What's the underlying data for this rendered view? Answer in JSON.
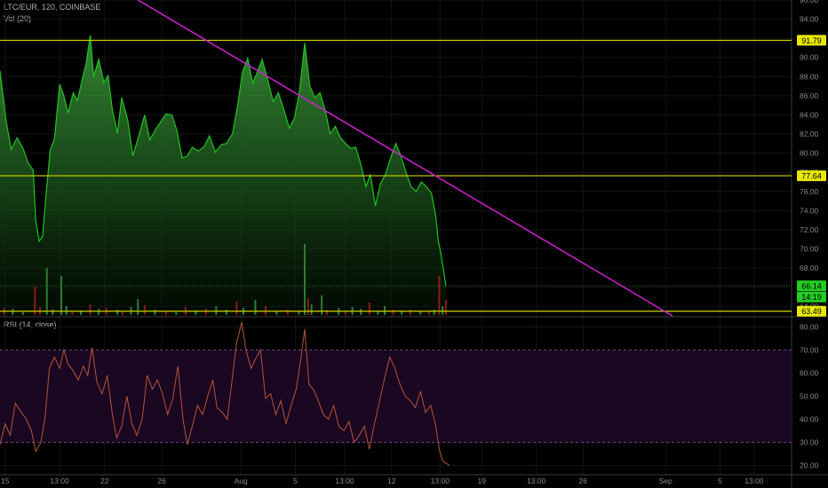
{
  "header": {
    "symbol": "LTC/EUR, 120, COINBASE",
    "volume_label": "Vol (20)",
    "rsi_label": "RSI (14, close)"
  },
  "colors": {
    "price_line": "#1ec41e",
    "volume_up": "#2e7d32",
    "volume_down": "#8b1a1a",
    "hline": "#d4d400",
    "trendline": "#d020d0",
    "rsi_line": "#b5543a",
    "rsi_band": "#1a0722",
    "label_green": "#22cc22",
    "label_yellow": "#e8e800"
  },
  "chart_data": [
    {
      "type": "area",
      "panel": "price",
      "ylim": [
        63,
        96
      ],
      "yticks": [
        64,
        66,
        68,
        70,
        72,
        74,
        76,
        78,
        80,
        82,
        84,
        86,
        88,
        90,
        92,
        94,
        96
      ],
      "ytick_labels": [
        "64.00",
        "66.00",
        "68.00",
        "70.00",
        "72.00",
        "74.00",
        "76.00",
        "78.00",
        "80.00",
        "82.00",
        "84.00",
        "86.00",
        "88.00",
        "90.00",
        "92.00",
        "94.00",
        "96.00"
      ],
      "x_labels": [
        {
          "t": 0.6,
          "label": "15"
        },
        {
          "t": 7.0,
          "label": "13:00"
        },
        {
          "t": 12.3,
          "label": "22"
        },
        {
          "t": 19.0,
          "label": "26"
        },
        {
          "t": 28.3,
          "label": "Aug"
        },
        {
          "t": 34.7,
          "label": "5"
        },
        {
          "t": 40.5,
          "label": "13:00"
        },
        {
          "t": 46.0,
          "label": "12"
        },
        {
          "t": 51.7,
          "label": "13:00"
        },
        {
          "t": 56.6,
          "label": "19"
        },
        {
          "t": 63.0,
          "label": "13:00"
        },
        {
          "t": 68.5,
          "label": "26"
        },
        {
          "t": 78.2,
          "label": "Sep"
        },
        {
          "t": 84.6,
          "label": "5"
        },
        {
          "t": 88.6,
          "label": "13:00"
        }
      ],
      "x_range": [
        0,
        93
      ],
      "price": [
        [
          0,
          88.6
        ],
        [
          0.7,
          83.5
        ],
        [
          1.3,
          80.4
        ],
        [
          2.0,
          81.6
        ],
        [
          2.7,
          80.5
        ],
        [
          3.3,
          79.0
        ],
        [
          3.9,
          78.2
        ],
        [
          4.2,
          73.0
        ],
        [
          4.6,
          70.8
        ],
        [
          5.0,
          71.3
        ],
        [
          5.4,
          75.5
        ],
        [
          5.9,
          80.3
        ],
        [
          6.4,
          81.5
        ],
        [
          7.0,
          87.2
        ],
        [
          7.5,
          86.0
        ],
        [
          8.0,
          84.2
        ],
        [
          8.6,
          86.3
        ],
        [
          9.1,
          85.5
        ],
        [
          9.6,
          87.5
        ],
        [
          10.1,
          89.3
        ],
        [
          10.6,
          92.3
        ],
        [
          11.0,
          88.0
        ],
        [
          11.6,
          89.8
        ],
        [
          12.2,
          87.4
        ],
        [
          12.7,
          88.1
        ],
        [
          13.2,
          84.5
        ],
        [
          13.8,
          82.1
        ],
        [
          14.3,
          85.8
        ],
        [
          15.0,
          83.5
        ],
        [
          15.6,
          79.7
        ],
        [
          16.3,
          81.8
        ],
        [
          17.0,
          84.0
        ],
        [
          17.6,
          81.4
        ],
        [
          18.3,
          82.5
        ],
        [
          18.9,
          83.3
        ],
        [
          19.5,
          84.1
        ],
        [
          20.2,
          84.0
        ],
        [
          20.8,
          82.3
        ],
        [
          21.4,
          79.5
        ],
        [
          22.0,
          79.7
        ],
        [
          22.6,
          80.6
        ],
        [
          23.3,
          80.2
        ],
        [
          24.0,
          80.7
        ],
        [
          24.6,
          81.8
        ],
        [
          25.3,
          80.1
        ],
        [
          26.0,
          80.9
        ],
        [
          26.6,
          81.0
        ],
        [
          27.3,
          82.0
        ],
        [
          27.9,
          84.9
        ],
        [
          28.5,
          88.5
        ],
        [
          29.1,
          89.9
        ],
        [
          29.7,
          87.3
        ],
        [
          30.2,
          88.4
        ],
        [
          30.8,
          89.8
        ],
        [
          31.5,
          87.5
        ],
        [
          32.1,
          85.4
        ],
        [
          32.7,
          86.3
        ],
        [
          33.4,
          84.4
        ],
        [
          34.0,
          82.6
        ],
        [
          34.6,
          83.7
        ],
        [
          35.2,
          86.5
        ],
        [
          35.8,
          91.5
        ],
        [
          36.4,
          87.0
        ],
        [
          37.0,
          85.8
        ],
        [
          37.6,
          86.3
        ],
        [
          38.2,
          84.5
        ],
        [
          38.8,
          82.0
        ],
        [
          39.4,
          82.8
        ],
        [
          40.0,
          81.6
        ],
        [
          40.6,
          81.0
        ],
        [
          41.2,
          80.5
        ],
        [
          41.8,
          80.6
        ],
        [
          42.4,
          78.8
        ],
        [
          43.0,
          76.5
        ],
        [
          43.5,
          77.8
        ],
        [
          44.1,
          74.5
        ],
        [
          44.7,
          76.8
        ],
        [
          45.3,
          77.8
        ],
        [
          45.9,
          79.5
        ],
        [
          46.5,
          81.0
        ],
        [
          47.1,
          79.7
        ],
        [
          47.7,
          78.0
        ],
        [
          48.3,
          76.5
        ],
        [
          48.9,
          76.0
        ],
        [
          49.5,
          77.0
        ],
        [
          50.1,
          76.5
        ],
        [
          50.7,
          75.8
        ],
        [
          51.2,
          73.4
        ],
        [
          51.5,
          70.8
        ],
        [
          51.8,
          69.5
        ],
        [
          52.1,
          67.8
        ],
        [
          52.4,
          66.1
        ]
      ],
      "volume": [
        [
          0.5,
          4.0,
          "d"
        ],
        [
          1.5,
          3.5,
          "u"
        ],
        [
          2.7,
          1.5,
          "u"
        ],
        [
          4.1,
          16.0,
          "d"
        ],
        [
          4.7,
          4.5,
          "d"
        ],
        [
          5.5,
          26.5,
          "u"
        ],
        [
          6.2,
          3.2,
          "u"
        ],
        [
          7.2,
          22.0,
          "u"
        ],
        [
          7.8,
          5.0,
          "u"
        ],
        [
          8.5,
          2.0,
          "d"
        ],
        [
          9.5,
          2.5,
          "u"
        ],
        [
          10.6,
          6.0,
          "d"
        ],
        [
          11.6,
          3.5,
          "u"
        ],
        [
          12.5,
          4.0,
          "d"
        ],
        [
          13.8,
          3.0,
          "u"
        ],
        [
          14.4,
          1.8,
          "d"
        ],
        [
          15.4,
          4.5,
          "u"
        ],
        [
          16.2,
          9.0,
          "u"
        ],
        [
          17.0,
          5.5,
          "d"
        ],
        [
          18.2,
          3.0,
          "u"
        ],
        [
          19.5,
          2.0,
          "d"
        ],
        [
          20.7,
          1.5,
          "u"
        ],
        [
          21.8,
          4.5,
          "d"
        ],
        [
          23.0,
          2.5,
          "u"
        ],
        [
          24.2,
          3.5,
          "d"
        ],
        [
          25.4,
          5.0,
          "u"
        ],
        [
          26.6,
          3.0,
          "u"
        ],
        [
          27.8,
          7.5,
          "d"
        ],
        [
          28.6,
          4.0,
          "u"
        ],
        [
          30.0,
          8.5,
          "u"
        ],
        [
          31.2,
          5.0,
          "d"
        ],
        [
          32.5,
          2.0,
          "u"
        ],
        [
          33.8,
          3.0,
          "d"
        ],
        [
          35.1,
          2.5,
          "u"
        ],
        [
          35.8,
          40.0,
          "u"
        ],
        [
          36.2,
          9.5,
          "d"
        ],
        [
          36.6,
          6.0,
          "u"
        ],
        [
          37.8,
          11.0,
          "u"
        ],
        [
          38.4,
          3.0,
          "d"
        ],
        [
          39.8,
          4.0,
          "u"
        ],
        [
          40.6,
          2.5,
          "d"
        ],
        [
          41.4,
          4.5,
          "u"
        ],
        [
          42.4,
          3.5,
          "u"
        ],
        [
          43.4,
          7.0,
          "d"
        ],
        [
          44.4,
          2.5,
          "u"
        ],
        [
          45.2,
          5.0,
          "u"
        ],
        [
          46.2,
          3.0,
          "d"
        ],
        [
          47.2,
          2.5,
          "u"
        ],
        [
          48.2,
          3.0,
          "d"
        ],
        [
          49.4,
          2.0,
          "u"
        ],
        [
          50.4,
          2.5,
          "d"
        ],
        [
          51.0,
          3.0,
          "u"
        ],
        [
          51.6,
          22.0,
          "d"
        ],
        [
          52.0,
          5.0,
          "u"
        ],
        [
          52.4,
          8.5,
          "d"
        ]
      ],
      "horizontal_lines": [
        91.79,
        77.64,
        63.49
      ],
      "trendline": [
        [
          10.5,
          99.0
        ],
        [
          79.0,
          63.0
        ]
      ],
      "price_labels": [
        {
          "value": 91.79,
          "text": "91.79",
          "style": "yellow"
        },
        {
          "value": 77.64,
          "text": "77.64",
          "style": "yellow"
        },
        {
          "value": 66.14,
          "text": "66.14",
          "style": "green"
        },
        {
          "value": 64.97,
          "text": "14:19",
          "style": "green"
        },
        {
          "value": 63.49,
          "text": "63.49",
          "style": "yellow"
        }
      ]
    },
    {
      "type": "line",
      "panel": "rsi",
      "title": "RSI (14, close)",
      "ylim": [
        16,
        84
      ],
      "yticks": [
        20,
        30,
        40,
        50,
        60,
        70,
        80
      ],
      "ytick_labels": [
        "20.00",
        "30.00",
        "40.00",
        "50.00",
        "60.00",
        "70.00",
        "80.00"
      ],
      "band": [
        30,
        70
      ],
      "rsi": [
        [
          0,
          29
        ],
        [
          0.6,
          38
        ],
        [
          1.2,
          33
        ],
        [
          1.8,
          47
        ],
        [
          2.5,
          43
        ],
        [
          3.1,
          40
        ],
        [
          3.7,
          35
        ],
        [
          4.2,
          26
        ],
        [
          4.8,
          30
        ],
        [
          5.3,
          41
        ],
        [
          5.8,
          62
        ],
        [
          6.4,
          67
        ],
        [
          7.0,
          62
        ],
        [
          7.5,
          70
        ],
        [
          8.0,
          64
        ],
        [
          8.6,
          61
        ],
        [
          9.2,
          57
        ],
        [
          9.8,
          63
        ],
        [
          10.3,
          59
        ],
        [
          10.8,
          71
        ],
        [
          11.4,
          56
        ],
        [
          12.0,
          51
        ],
        [
          12.6,
          59
        ],
        [
          13.2,
          42
        ],
        [
          13.7,
          32
        ],
        [
          14.3,
          37
        ],
        [
          14.9,
          50
        ],
        [
          15.5,
          38
        ],
        [
          16.1,
          33
        ],
        [
          16.7,
          40
        ],
        [
          17.3,
          59
        ],
        [
          17.9,
          53
        ],
        [
          18.5,
          57
        ],
        [
          19.1,
          51
        ],
        [
          19.7,
          42
        ],
        [
          20.3,
          49
        ],
        [
          20.9,
          63
        ],
        [
          21.5,
          40
        ],
        [
          22.0,
          29
        ],
        [
          22.6,
          37
        ],
        [
          23.2,
          46
        ],
        [
          23.8,
          42
        ],
        [
          24.4,
          50
        ],
        [
          25.0,
          57
        ],
        [
          25.5,
          45
        ],
        [
          26.1,
          43
        ],
        [
          26.7,
          40
        ],
        [
          27.2,
          55
        ],
        [
          27.8,
          73
        ],
        [
          28.4,
          82
        ],
        [
          28.9,
          70
        ],
        [
          29.5,
          62
        ],
        [
          30.0,
          66
        ],
        [
          30.6,
          70
        ],
        [
          31.2,
          49
        ],
        [
          31.8,
          51
        ],
        [
          32.4,
          42
        ],
        [
          33.0,
          48
        ],
        [
          33.6,
          38
        ],
        [
          34.2,
          46
        ],
        [
          34.8,
          53
        ],
        [
          35.3,
          65
        ],
        [
          35.8,
          79
        ],
        [
          36.3,
          55
        ],
        [
          36.8,
          53
        ],
        [
          37.4,
          48
        ],
        [
          38.0,
          42
        ],
        [
          38.6,
          40
        ],
        [
          39.2,
          46
        ],
        [
          39.8,
          37
        ],
        [
          40.4,
          35
        ],
        [
          41.0,
          39
        ],
        [
          41.6,
          30
        ],
        [
          42.2,
          33
        ],
        [
          42.8,
          37
        ],
        [
          43.4,
          27
        ],
        [
          44.0,
          38
        ],
        [
          44.6,
          48
        ],
        [
          45.2,
          58
        ],
        [
          45.8,
          67
        ],
        [
          46.4,
          62
        ],
        [
          47.0,
          55
        ],
        [
          47.6,
          50
        ],
        [
          48.2,
          48
        ],
        [
          48.8,
          45
        ],
        [
          49.4,
          52
        ],
        [
          50.0,
          43
        ],
        [
          50.6,
          46
        ],
        [
          51.2,
          37
        ],
        [
          51.6,
          27
        ],
        [
          52.0,
          22
        ],
        [
          52.4,
          21
        ],
        [
          52.8,
          20
        ]
      ]
    }
  ]
}
